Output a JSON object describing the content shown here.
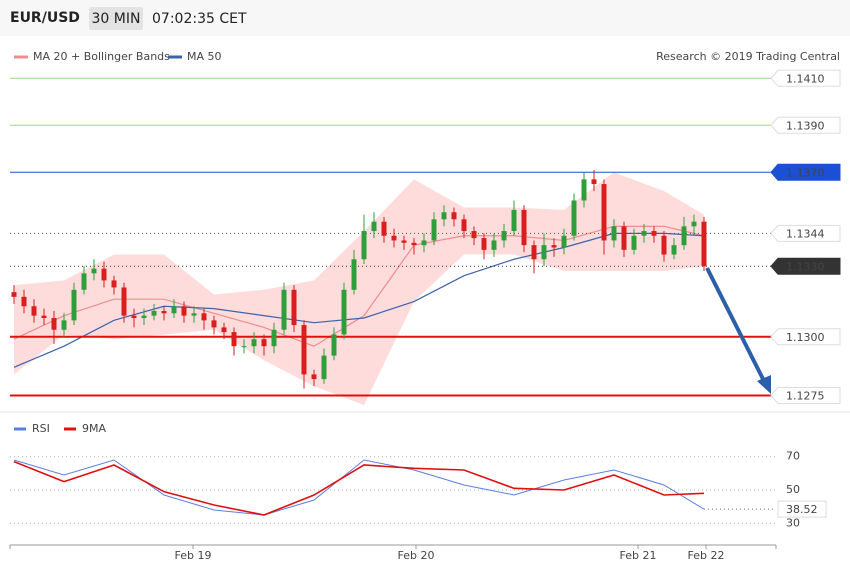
{
  "header": {
    "symbol": "EUR/USD",
    "interval": "30 MIN",
    "time": "07:02:35 CET",
    "credit": "Research © 2019 Trading Central"
  },
  "chart_data": [
    {
      "type": "candlestick",
      "xlim": [
        -0.4,
        76.2
      ],
      "ylim": [
        1.1268,
        1.1428
      ],
      "xticks": [
        {
          "value": 17.9,
          "label": "Feb 19"
        },
        {
          "value": 40.2,
          "label": "Feb 20"
        },
        {
          "value": 62.4,
          "label": "Feb 21"
        },
        {
          "value": 69.2,
          "label": "Feb 22"
        }
      ],
      "x": [
        0,
        1,
        2,
        3,
        4,
        5,
        6,
        7,
        8,
        9,
        10,
        11,
        12,
        13,
        14,
        15,
        16,
        17,
        18,
        19,
        20,
        21,
        22,
        23,
        24,
        25,
        26,
        27,
        28,
        29,
        30,
        31,
        32,
        33,
        34,
        35,
        36,
        37,
        38,
        39,
        40,
        41,
        42,
        43,
        44,
        45,
        46,
        47,
        48,
        49,
        50,
        51,
        52,
        53,
        54,
        55,
        56,
        57,
        58,
        59,
        60,
        61,
        62,
        63,
        64,
        65,
        66,
        67,
        68,
        69
      ],
      "open": [
        1.1319,
        1.1317,
        1.1313,
        1.1309,
        1.1308,
        1.1303,
        1.1307,
        1.132,
        1.1327,
        1.1329,
        1.1324,
        1.1321,
        1.1309,
        1.1308,
        1.1309,
        1.1311,
        1.131,
        1.1313,
        1.1309,
        1.131,
        1.1307,
        1.1304,
        1.1302,
        1.1296,
        1.1296,
        1.1299,
        1.1296,
        1.1303,
        1.132,
        1.1305,
        1.1284,
        1.1282,
        1.1292,
        1.1301,
        1.132,
        1.1333,
        1.1345,
        1.1349,
        1.1343,
        1.1341,
        1.134,
        1.1339,
        1.1341,
        1.135,
        1.1353,
        1.135,
        1.1345,
        1.1342,
        1.1337,
        1.1341,
        1.1345,
        1.1354,
        1.1339,
        1.1333,
        1.1339,
        1.1338,
        1.1343,
        1.1358,
        1.1367,
        1.1365,
        1.1341,
        1.1347,
        1.1337,
        1.1343,
        1.1345,
        1.1343,
        1.1335,
        1.1339,
        1.1347,
        1.1349
      ],
      "high": [
        1.1322,
        1.132,
        1.1316,
        1.1312,
        1.1311,
        1.131,
        1.1323,
        1.133,
        1.1333,
        1.1332,
        1.1326,
        1.1323,
        1.1312,
        1.1312,
        1.1314,
        1.1313,
        1.1316,
        1.1315,
        1.1313,
        1.1312,
        1.1309,
        1.1306,
        1.1304,
        1.1299,
        1.1302,
        1.1301,
        1.1306,
        1.1323,
        1.1322,
        1.1307,
        1.1286,
        1.1295,
        1.1304,
        1.1323,
        1.1337,
        1.1352,
        1.1353,
        1.1351,
        1.1346,
        1.1343,
        1.1342,
        1.1344,
        1.1353,
        1.1356,
        1.1355,
        1.1352,
        1.1347,
        1.1344,
        1.1344,
        1.1348,
        1.1358,
        1.1356,
        1.1341,
        1.1344,
        1.1342,
        1.1346,
        1.1361,
        1.137,
        1.1371,
        1.1367,
        1.135,
        1.1349,
        1.1346,
        1.1348,
        1.1347,
        1.1345,
        1.1342,
        1.1351,
        1.1352,
        1.1351
      ],
      "low": [
        1.1314,
        1.131,
        1.1306,
        1.1305,
        1.1297,
        1.13,
        1.1305,
        1.1318,
        1.1324,
        1.1321,
        1.1318,
        1.1306,
        1.1304,
        1.1305,
        1.1307,
        1.1307,
        1.1308,
        1.1306,
        1.1306,
        1.1303,
        1.1301,
        1.1299,
        1.1292,
        1.1293,
        1.1293,
        1.1292,
        1.1293,
        1.1301,
        1.1302,
        1.1278,
        1.1279,
        1.128,
        1.129,
        1.1299,
        1.1318,
        1.1331,
        1.1342,
        1.134,
        1.1338,
        1.1337,
        1.1335,
        1.1336,
        1.1339,
        1.1347,
        1.1347,
        1.1342,
        1.1339,
        1.1333,
        1.1334,
        1.1338,
        1.1343,
        1.1336,
        1.1327,
        1.133,
        1.1334,
        1.1335,
        1.1341,
        1.1355,
        1.1362,
        1.1335,
        1.1338,
        1.1334,
        1.1335,
        1.134,
        1.134,
        1.1332,
        1.1333,
        1.1337,
        1.1343,
        1.1328
      ],
      "close": [
        1.1317,
        1.1313,
        1.1309,
        1.1308,
        1.1303,
        1.1307,
        1.132,
        1.1327,
        1.1329,
        1.1324,
        1.1321,
        1.1309,
        1.1308,
        1.1309,
        1.1311,
        1.131,
        1.1313,
        1.1309,
        1.131,
        1.1307,
        1.1304,
        1.1302,
        1.1296,
        1.1296,
        1.1299,
        1.1296,
        1.1303,
        1.132,
        1.1305,
        1.1284,
        1.1282,
        1.1292,
        1.1301,
        1.132,
        1.1333,
        1.1345,
        1.1349,
        1.1343,
        1.1341,
        1.134,
        1.1339,
        1.1341,
        1.135,
        1.1353,
        1.135,
        1.1345,
        1.1342,
        1.1337,
        1.1341,
        1.1345,
        1.1354,
        1.1339,
        1.1333,
        1.1339,
        1.1338,
        1.1343,
        1.1358,
        1.1367,
        1.1365,
        1.1341,
        1.1347,
        1.1337,
        1.1343,
        1.1345,
        1.1343,
        1.1335,
        1.1339,
        1.1347,
        1.1349,
        1.133
      ],
      "up_color": "#2e9e3a",
      "down_color": "#d81e1e",
      "series": [
        {
          "name": "MA 20 + Bollinger Bands",
          "color": "#f08c8c",
          "band_color": "#ffdcdc",
          "x": [
            0,
            5,
            10,
            15,
            20,
            25,
            30,
            35,
            40,
            45,
            50,
            55,
            60,
            65,
            69
          ],
          "values": [
            1.1299,
            1.1309,
            1.1316,
            1.1316,
            1.131,
            1.1304,
            1.1296,
            1.1309,
            1.1339,
            1.1343,
            1.1343,
            1.1341,
            1.1347,
            1.1347,
            1.1343
          ],
          "upper": [
            1.1322,
            1.1324,
            1.1335,
            1.1335,
            1.1318,
            1.132,
            1.1324,
            1.1345,
            1.1367,
            1.1355,
            1.1355,
            1.1354,
            1.137,
            1.1362,
            1.1352
          ],
          "lower": [
            1.1284,
            1.1301,
            1.1299,
            1.1301,
            1.1303,
            1.129,
            1.1279,
            1.1271,
            1.1315,
            1.1335,
            1.1335,
            1.1328,
            1.1328,
            1.1328,
            1.133
          ]
        },
        {
          "name": "MA 50",
          "color": "#3d62a8",
          "x": [
            0,
            5,
            10,
            15,
            20,
            25,
            30,
            35,
            40,
            45,
            50,
            55,
            60,
            65,
            69
          ],
          "values": [
            1.1287,
            1.1296,
            1.1307,
            1.1313,
            1.1312,
            1.1309,
            1.1306,
            1.1308,
            1.1315,
            1.1326,
            1.1333,
            1.1338,
            1.1344,
            1.1344,
            1.1343
          ]
        }
      ],
      "levels": [
        {
          "value": 1.141,
          "label": "1.1410",
          "color": "#9ed68a",
          "text_color": "#4aa02c",
          "line": "solid",
          "width": 1,
          "box": "outline"
        },
        {
          "value": 1.139,
          "label": "1.1390",
          "color": "#9ed68a",
          "text_color": "#4aa02c",
          "line": "solid",
          "width": 1,
          "box": "outline"
        },
        {
          "value": 1.137,
          "label": "1.1370",
          "color": "#1a4fd6",
          "text_color": "#ffffff",
          "line": "solid",
          "width": 1,
          "box": "filled"
        },
        {
          "value": 1.1344,
          "label": "1.1344",
          "color": "#555555",
          "text_color": "#2a4f8a",
          "line": "dotted",
          "width": 1,
          "box": "outline"
        },
        {
          "value": 1.133,
          "label": "1.1330",
          "color": "#333333",
          "text_color": "#ffffff",
          "line": "dotted",
          "width": 1,
          "box": "filled"
        },
        {
          "value": 1.13,
          "label": "1.1300",
          "color": "#e01010",
          "text_color": "#e01010",
          "line": "solid",
          "width": 2,
          "box": "outline"
        },
        {
          "value": 1.1275,
          "label": "1.1275",
          "color": "#e01010",
          "text_color": "#e01010",
          "line": "solid",
          "width": 2,
          "box": "outline"
        }
      ]
    },
    {
      "type": "line",
      "xlim": [
        -0.4,
        76.2
      ],
      "ylim": [
        20,
        80
      ],
      "yticks": [
        70,
        50,
        30
      ],
      "grid": true,
      "series": [
        {
          "name": "RSI",
          "color": "#5b7fe0",
          "x": [
            0,
            5,
            10,
            15,
            20,
            25,
            30,
            35,
            40,
            45,
            50,
            55,
            60,
            65,
            69
          ],
          "values": [
            68,
            59,
            68,
            47,
            38,
            35,
            44,
            68,
            62,
            53,
            47,
            56,
            62,
            53,
            38.52
          ]
        },
        {
          "name": "9MA",
          "color": "#e01010",
          "x": [
            0,
            5,
            10,
            15,
            20,
            25,
            30,
            35,
            40,
            45,
            50,
            55,
            60,
            65,
            69
          ],
          "values": [
            67,
            55,
            65,
            49,
            41,
            35,
            47,
            65,
            63,
            62,
            51,
            50,
            59,
            47,
            48
          ]
        }
      ]
    }
  ]
}
